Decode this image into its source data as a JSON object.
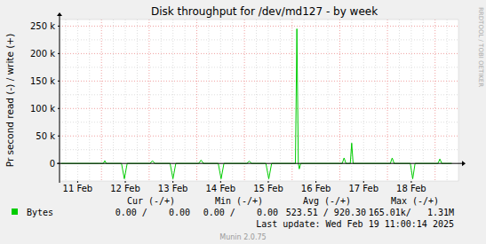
{
  "chart_data": {
    "type": "line",
    "title": "Disk throughput for /dev/md127 - by week",
    "y_label": "Pr second read (-) / write (+)",
    "x": [
      11.15,
      11.95,
      12.04,
      12.07,
      12.1,
      12.42,
      12.48,
      12.54,
      13.02,
      13.07,
      13.12,
      13.44,
      13.5,
      13.56,
      14.04,
      14.09,
      14.14,
      14.45,
      14.51,
      14.57,
      15.05,
      15.1,
      15.15,
      15.45,
      15.51,
      15.57,
      16.07,
      16.1,
      16.13,
      16.15,
      16.18,
      17.05,
      17.09,
      17.13,
      17.22,
      17.25,
      17.28,
      18.06,
      18.1,
      18.14,
      18.48,
      18.53,
      18.58,
      19.06,
      19.1,
      19.14,
      19.35
    ],
    "series": [
      {
        "name": "Bytes",
        "color": "#00cc00",
        "values": [
          0,
          0,
          0,
          5000,
          0,
          0,
          -28000,
          0,
          0,
          5000,
          0,
          0,
          -28000,
          0,
          0,
          6000,
          0,
          0,
          -28000,
          0,
          0,
          4000,
          0,
          0,
          -28000,
          0,
          0,
          245000,
          0,
          -10000,
          0,
          0,
          10000,
          0,
          0,
          37000,
          0,
          0,
          10000,
          0,
          0,
          -28000,
          0,
          0,
          8000,
          0,
          0
        ]
      }
    ],
    "xlim": [
      11.12,
      19.49
    ],
    "xticks": [
      {
        "value": 11.5,
        "label": "11 Feb"
      },
      {
        "value": 12.5,
        "label": "12 Feb"
      },
      {
        "value": 13.5,
        "label": "13 Feb"
      },
      {
        "value": 14.5,
        "label": "14 Feb"
      },
      {
        "value": 15.5,
        "label": "15 Feb"
      },
      {
        "value": 16.5,
        "label": "16 Feb"
      },
      {
        "value": 17.5,
        "label": "17 Feb"
      },
      {
        "value": 18.5,
        "label": "18 Feb"
      }
    ],
    "ylim": [
      -32000,
      262000
    ],
    "yticks": [
      0,
      {
        "value": 50000,
        "label": "50 k"
      },
      {
        "value": 100000,
        "label": "100 k"
      },
      {
        "value": 150000,
        "label": "150 k"
      },
      {
        "value": 200000,
        "label": "200 k"
      },
      {
        "value": 250000,
        "label": "250 k"
      }
    ],
    "grid": true,
    "summary": {
      "columns": [
        "Cur (-/+)",
        "Min (-/+)",
        "Avg (-/+)",
        "Max (-/+)"
      ],
      "rows": [
        {
          "name": "Bytes",
          "cells": [
            "0.00 /    0.00",
            "0.00 /    0.00",
            "523.51 / 920.30",
            "165.01k/   1.31M"
          ]
        }
      ]
    },
    "footer": "Last update: Wed Feb 19 11:00:14 2025",
    "credit": "Munin 2.0.75",
    "watermark": "RRDTOOL / TOBI OETIKER"
  }
}
